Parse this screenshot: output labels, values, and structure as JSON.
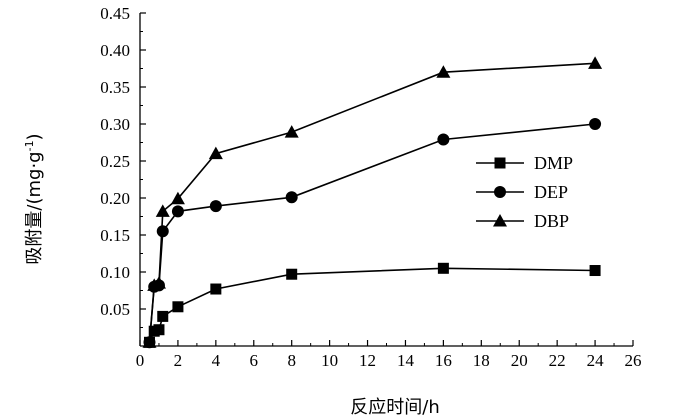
{
  "chart_data": {
    "type": "line",
    "title": "",
    "xlabel": "反应时间/h",
    "ylabel": "吸附量/(mg·g",
    "ylabel_sup": "-1",
    "ylabel_close": ")",
    "xlim": [
      0,
      26
    ],
    "ylim": [
      0,
      0.45
    ],
    "x_ticks": [
      0,
      2,
      4,
      6,
      8,
      10,
      12,
      14,
      16,
      18,
      20,
      22,
      24,
      26
    ],
    "y_ticks": [
      0.05,
      0.1,
      0.15,
      0.2,
      0.25,
      0.3,
      0.35,
      0.4,
      0.45
    ],
    "y_tick_labels": [
      "0.05",
      "0.10",
      "0.15",
      "0.20",
      "0.25",
      "0.30",
      "0.35",
      "0.40",
      "0.45"
    ],
    "grid": false,
    "legend_position": "right-middle",
    "series": [
      {
        "name": "DMP",
        "marker": "square",
        "color": "#000000",
        "x": [
          0.5,
          0.75,
          1,
          1.2,
          2,
          4,
          8,
          16,
          24
        ],
        "y": [
          0.005,
          0.02,
          0.022,
          0.04,
          0.053,
          0.077,
          0.097,
          0.105,
          0.102
        ]
      },
      {
        "name": "DEP",
        "marker": "circle",
        "color": "#000000",
        "x": [
          0.5,
          0.75,
          1,
          1.2,
          2,
          4,
          8,
          16,
          24
        ],
        "y": [
          0.005,
          0.08,
          0.082,
          0.155,
          0.182,
          0.189,
          0.201,
          0.279,
          0.3
        ]
      },
      {
        "name": "DBP",
        "marker": "triangle",
        "color": "#000000",
        "x": [
          0.5,
          0.75,
          1,
          1.2,
          2,
          4,
          8,
          16,
          24
        ],
        "y": [
          0.005,
          0.082,
          0.085,
          0.182,
          0.199,
          0.26,
          0.289,
          0.37,
          0.382
        ]
      }
    ]
  }
}
